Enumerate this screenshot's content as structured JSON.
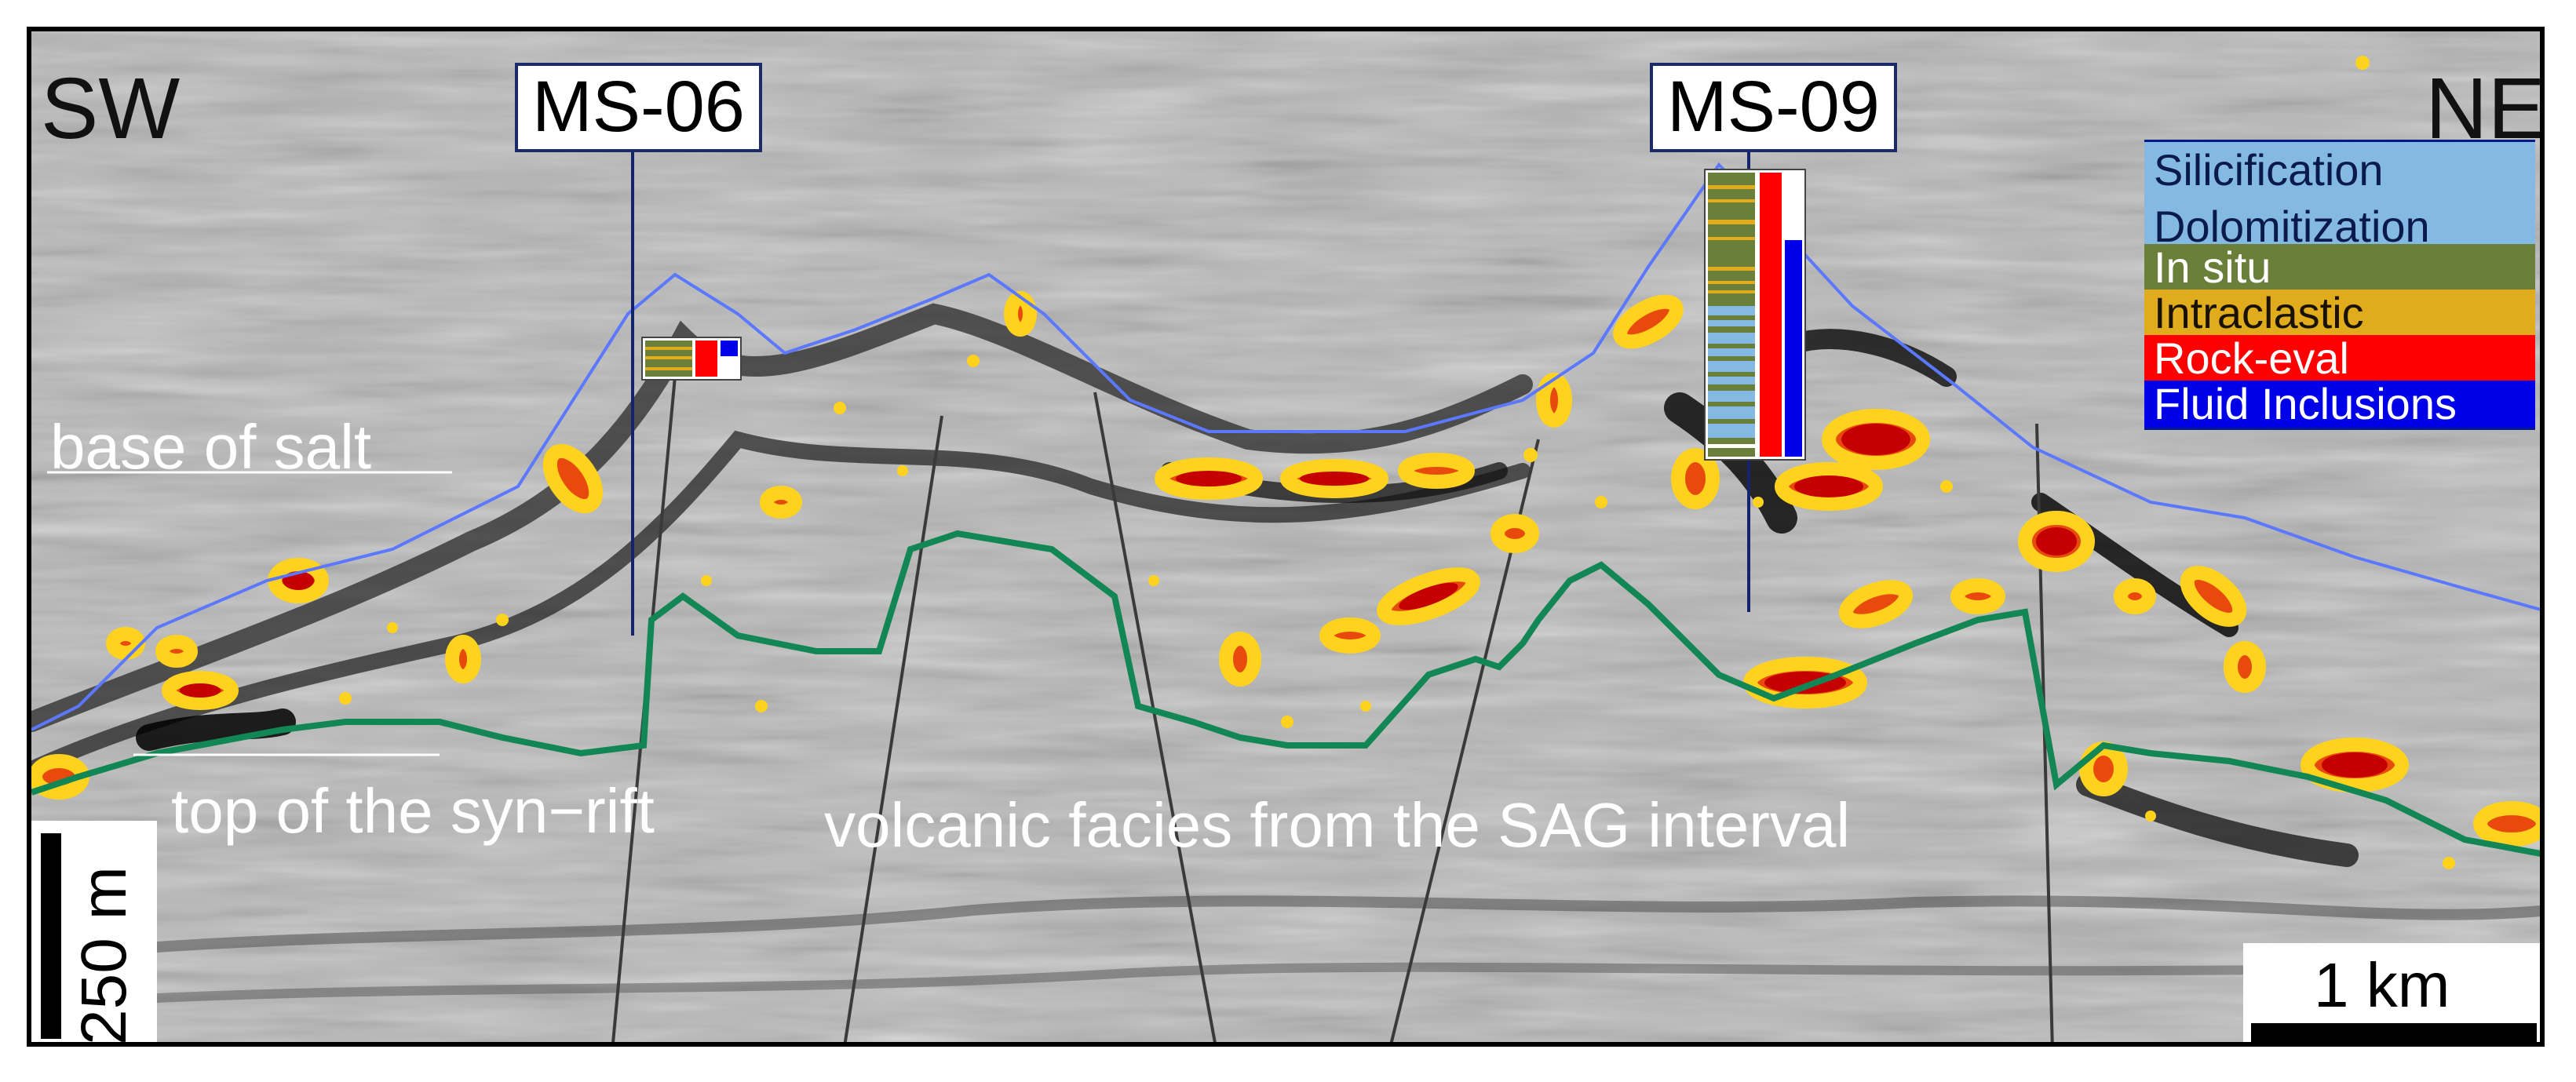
{
  "directions": {
    "left": "SW",
    "right": "NE"
  },
  "wells": [
    {
      "name": "MS-06"
    },
    {
      "name": "MS-09"
    }
  ],
  "horizons": {
    "base_of_salt": "base of salt",
    "top_of_synrift": "top of the syn−rift",
    "sag_interval": "volcanic facies from the SAG interval"
  },
  "legend": [
    {
      "label": "Silicification",
      "color": "#84b9e4"
    },
    {
      "label": "Dolomitization",
      "color": "#84b9e4"
    },
    {
      "label": "In situ",
      "color": "#6a7f3a"
    },
    {
      "label": "Intraclastic",
      "color": "#e0ab1c"
    },
    {
      "label": "Rock-eval",
      "color": "#ff0000"
    },
    {
      "label": "Fluid Inclusions",
      "color": "#0000e8"
    }
  ],
  "scale": {
    "vertical": "250 m",
    "horizontal": "1 km"
  },
  "colors": {
    "base_of_salt_line": "#5b78ff",
    "syn_rift_line": "#138655",
    "fault": "#3a3a3a",
    "well_stick": "#14246b",
    "anomaly_outer": "#ffd21e",
    "anomaly_mid": "#e84a0e",
    "anomaly_core": "#c40000"
  }
}
